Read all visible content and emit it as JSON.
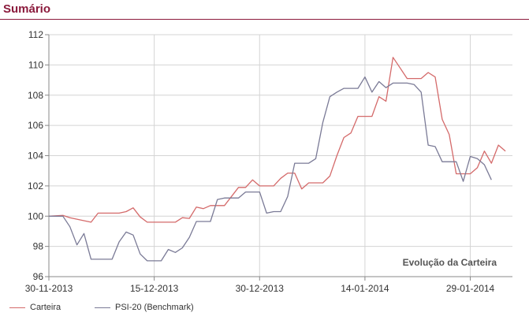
{
  "page": {
    "title": "Sumário"
  },
  "chart_data": {
    "type": "line",
    "title": "Sumário",
    "annotation": "Evolução da Carteira",
    "ylim": [
      96,
      112
    ],
    "yticks": [
      "96",
      "98",
      "100",
      "102",
      "104",
      "106",
      "108",
      "110",
      "112"
    ],
    "x_range": [
      "2013-11-30",
      "2014-02-04"
    ],
    "xticks": [
      "30-11-2013",
      "15-12-2013",
      "30-12-2013",
      "14-01-2014",
      "29-01-2014"
    ],
    "grid": true,
    "legend_position": "bottom-left",
    "series": [
      {
        "name": "Carteira",
        "color": "#d46a6a",
        "points": [
          [
            "2013-11-30",
            100.0
          ],
          [
            "2013-12-02",
            100.05
          ],
          [
            "2013-12-03",
            99.9
          ],
          [
            "2013-12-04",
            99.8
          ],
          [
            "2013-12-05",
            99.7
          ],
          [
            "2013-12-06",
            99.6
          ],
          [
            "2013-12-07",
            100.2
          ],
          [
            "2013-12-09",
            100.2
          ],
          [
            "2013-12-10",
            100.2
          ],
          [
            "2013-12-11",
            100.3
          ],
          [
            "2013-12-12",
            100.55
          ],
          [
            "2013-12-13",
            99.95
          ],
          [
            "2013-12-14",
            99.6
          ],
          [
            "2013-12-16",
            99.6
          ],
          [
            "2013-12-17",
            99.6
          ],
          [
            "2013-12-18",
            99.6
          ],
          [
            "2013-12-19",
            99.9
          ],
          [
            "2013-12-20",
            99.85
          ],
          [
            "2013-12-21",
            100.6
          ],
          [
            "2013-12-22",
            100.5
          ],
          [
            "2013-12-23",
            100.7
          ],
          [
            "2013-12-25",
            100.7
          ],
          [
            "2013-12-26",
            101.3
          ],
          [
            "2013-12-27",
            101.9
          ],
          [
            "2013-12-28",
            101.9
          ],
          [
            "2013-12-29",
            102.4
          ],
          [
            "2013-12-30",
            102.0
          ],
          [
            "2013-12-31",
            102.0
          ],
          [
            "2014-01-01",
            102.0
          ],
          [
            "2014-01-02",
            102.5
          ],
          [
            "2014-01-03",
            102.85
          ],
          [
            "2014-01-04",
            102.85
          ],
          [
            "2014-01-05",
            101.8
          ],
          [
            "2014-01-06",
            102.2
          ],
          [
            "2014-01-07",
            102.2
          ],
          [
            "2014-01-08",
            102.2
          ],
          [
            "2014-01-09",
            102.65
          ],
          [
            "2014-01-10",
            104.0
          ],
          [
            "2014-01-11",
            105.2
          ],
          [
            "2014-01-12",
            105.5
          ],
          [
            "2014-01-13",
            106.6
          ],
          [
            "2014-01-14",
            106.6
          ],
          [
            "2014-01-15",
            106.6
          ],
          [
            "2014-01-16",
            107.9
          ],
          [
            "2014-01-17",
            107.6
          ],
          [
            "2014-01-18",
            110.5
          ],
          [
            "2014-01-19",
            109.8
          ],
          [
            "2014-01-20",
            109.1
          ],
          [
            "2014-01-21",
            109.1
          ],
          [
            "2014-01-22",
            109.1
          ],
          [
            "2014-01-23",
            109.5
          ],
          [
            "2014-01-24",
            109.2
          ],
          [
            "2014-01-25",
            106.4
          ],
          [
            "2014-01-26",
            105.4
          ],
          [
            "2014-01-27",
            102.8
          ],
          [
            "2014-01-28",
            102.8
          ],
          [
            "2014-01-29",
            102.8
          ],
          [
            "2014-01-30",
            103.2
          ],
          [
            "2014-01-31",
            104.3
          ],
          [
            "2014-02-01",
            103.5
          ],
          [
            "2014-02-02",
            104.7
          ],
          [
            "2014-02-03",
            104.3
          ]
        ]
      },
      {
        "name": "PSI-20 (Benchmark)",
        "color": "#7a7a96",
        "points": [
          [
            "2013-11-30",
            100.0
          ],
          [
            "2013-12-02",
            100.0
          ],
          [
            "2013-12-03",
            99.3
          ],
          [
            "2013-12-04",
            98.1
          ],
          [
            "2013-12-05",
            98.85
          ],
          [
            "2013-12-06",
            97.15
          ],
          [
            "2013-12-07",
            97.15
          ],
          [
            "2013-12-09",
            97.15
          ],
          [
            "2013-12-10",
            98.3
          ],
          [
            "2013-12-11",
            98.95
          ],
          [
            "2013-12-12",
            98.75
          ],
          [
            "2013-12-13",
            97.5
          ],
          [
            "2013-12-14",
            97.05
          ],
          [
            "2013-12-16",
            97.05
          ],
          [
            "2013-12-17",
            97.8
          ],
          [
            "2013-12-18",
            97.6
          ],
          [
            "2013-12-19",
            97.9
          ],
          [
            "2013-12-20",
            98.6
          ],
          [
            "2013-12-21",
            99.65
          ],
          [
            "2013-12-22",
            99.65
          ],
          [
            "2013-12-23",
            99.65
          ],
          [
            "2013-12-24",
            101.1
          ],
          [
            "2013-12-25",
            101.2
          ],
          [
            "2013-12-27",
            101.2
          ],
          [
            "2013-12-28",
            101.6
          ],
          [
            "2013-12-29",
            101.6
          ],
          [
            "2013-12-30",
            101.6
          ],
          [
            "2013-12-31",
            100.2
          ],
          [
            "2014-01-01",
            100.3
          ],
          [
            "2014-01-02",
            100.3
          ],
          [
            "2014-01-03",
            101.3
          ],
          [
            "2014-01-04",
            103.5
          ],
          [
            "2014-01-05",
            103.5
          ],
          [
            "2014-01-06",
            103.5
          ],
          [
            "2014-01-07",
            103.8
          ],
          [
            "2014-01-08",
            106.2
          ],
          [
            "2014-01-09",
            107.9
          ],
          [
            "2014-01-10",
            108.2
          ],
          [
            "2014-01-11",
            108.45
          ],
          [
            "2014-01-12",
            108.45
          ],
          [
            "2014-01-13",
            108.45
          ],
          [
            "2014-01-14",
            109.2
          ],
          [
            "2014-01-15",
            108.2
          ],
          [
            "2014-01-16",
            108.9
          ],
          [
            "2014-01-17",
            108.5
          ],
          [
            "2014-01-18",
            108.8
          ],
          [
            "2014-01-19",
            108.8
          ],
          [
            "2014-01-20",
            108.8
          ],
          [
            "2014-01-21",
            108.7
          ],
          [
            "2014-01-22",
            108.2
          ],
          [
            "2014-01-23",
            104.7
          ],
          [
            "2014-01-24",
            104.6
          ],
          [
            "2014-01-25",
            103.6
          ],
          [
            "2014-01-26",
            103.6
          ],
          [
            "2014-01-27",
            103.6
          ],
          [
            "2014-01-28",
            102.3
          ],
          [
            "2014-01-29",
            103.95
          ],
          [
            "2014-01-30",
            103.8
          ],
          [
            "2014-01-31",
            103.4
          ],
          [
            "2014-02-01",
            102.4
          ]
        ]
      }
    ]
  }
}
